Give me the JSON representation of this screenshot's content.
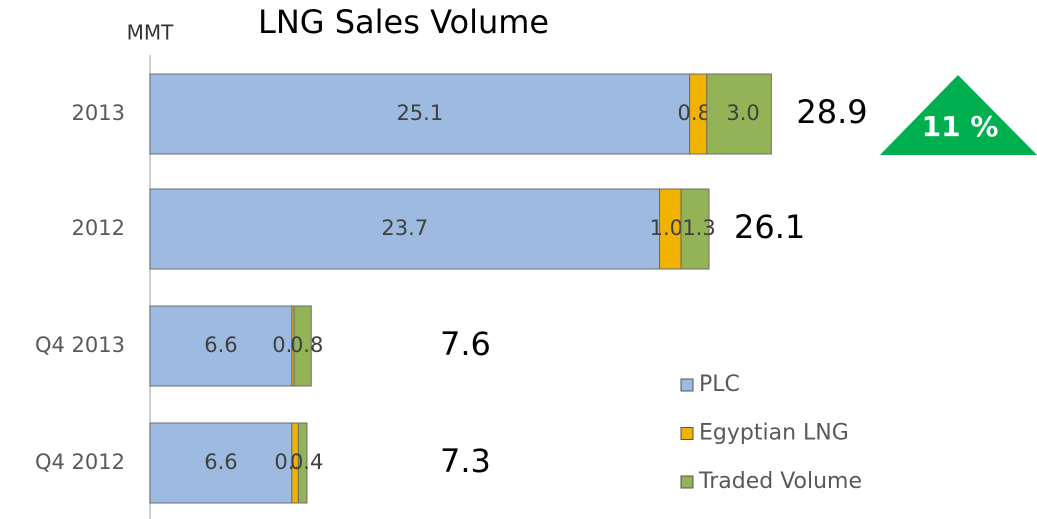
{
  "chart_data": {
    "type": "stacked-barh",
    "title": "LNG Sales Volume",
    "unit_label": "MMT",
    "categories": [
      "2013",
      "2012",
      "Q4 2013",
      "Q4 2012"
    ],
    "series": [
      {
        "name": "PLC",
        "color": "#9dbbe0",
        "values": [
          25.1,
          23.7,
          6.6,
          6.6
        ],
        "value_labels": [
          "25.1",
          "23.7",
          "6.6",
          "6.6"
        ]
      },
      {
        "name": "Egyptian LNG",
        "color": "#f2b200",
        "values": [
          0.8,
          1.0,
          0.1,
          0.3
        ],
        "value_labels": [
          "0.8",
          "1.0",
          "0.1",
          "0.3"
        ]
      },
      {
        "name": "Traded Volume",
        "color": "#93b356",
        "values": [
          3.0,
          1.3,
          0.8,
          0.4
        ],
        "value_labels": [
          "3.0",
          "1.3",
          "0.8",
          "0.4"
        ]
      }
    ],
    "totals": [
      28.9,
      26.1,
      7.6,
      7.3
    ],
    "annotation": "11 %",
    "legend": "lower right"
  }
}
